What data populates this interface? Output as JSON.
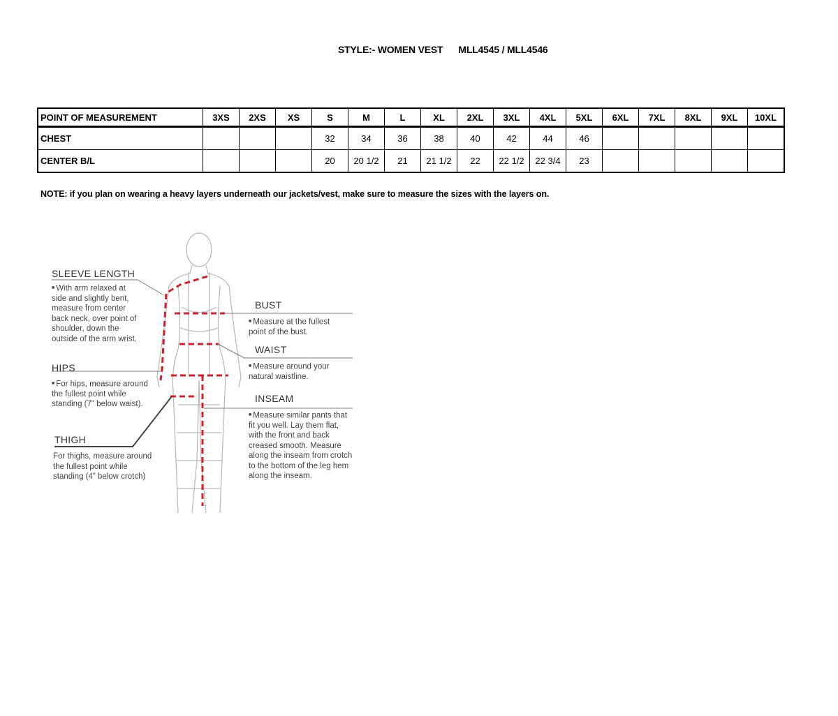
{
  "header": {
    "style": "STYLE:- WOMEN VEST",
    "codes": "MLL4545 / MLL4546"
  },
  "table": {
    "columns": [
      "POINT OF MEASUREMENT",
      "3XS",
      "2XS",
      "XS",
      "S",
      "M",
      "L",
      "XL",
      "2XL",
      "3XL",
      "4XL",
      "5XL",
      "6XL",
      "7XL",
      "8XL",
      "9XL",
      "10XL"
    ],
    "rows": [
      [
        "CHEST",
        "",
        "",
        "",
        "32",
        "34",
        "36",
        "38",
        "40",
        "42",
        "44",
        "46",
        "",
        "",
        "",
        "",
        ""
      ],
      [
        "CENTER B/L",
        "",
        "",
        "",
        "20",
        "20 1/2",
        "21",
        "21 1/2",
        "22",
        "22 1/2",
        "22 3/4",
        "23",
        "",
        "",
        "",
        "",
        ""
      ]
    ]
  },
  "note": "NOTE: if you plan on wearing a heavy layers underneath our jackets/vest, make sure to measure the sizes with the layers on.",
  "guide": {
    "sleeve": {
      "label": "SLEEVE LENGTH",
      "text": "With arm relaxed at side and slightly bent, measure from center back neck, over point of shoulder, down the outside of the arm wrist."
    },
    "hips": {
      "label": "HIPS",
      "text": "For hips, measure around the fullest point while standing (7\" below waist)."
    },
    "thigh": {
      "label": "THIGH",
      "text": "For thighs, measure around the fullest point while standing (4” below crotch)"
    },
    "bust": {
      "label": "BUST",
      "text": "Measure at the fullest point of the bust."
    },
    "waist": {
      "label": "WAIST",
      "text": "Measure around your natural waistline."
    },
    "inseam": {
      "label": "INSEAM",
      "text": "Measure similar pants that fit you well. Lay them flat, with the front and back creased smooth. Measure along the inseam from crotch to the bottom of the leg hem along the inseam."
    }
  },
  "colors": {
    "measure_line": "#d0202e"
  }
}
